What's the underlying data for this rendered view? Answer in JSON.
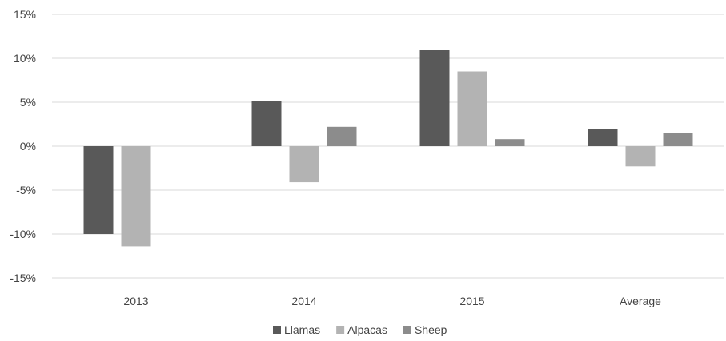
{
  "chart_data": {
    "type": "bar",
    "title": "",
    "xlabel": "",
    "ylabel": "",
    "categories": [
      "2013",
      "2014",
      "2015",
      "Average"
    ],
    "series": [
      {
        "name": "Llamas",
        "color": "#595959",
        "values": [
          -10.0,
          5.1,
          11.0,
          2.0
        ]
      },
      {
        "name": "Alpacas",
        "color": "#b3b3b3",
        "values": [
          -11.4,
          -4.1,
          8.5,
          -2.3
        ]
      },
      {
        "name": "Sheep",
        "color": "#8c8c8c",
        "values": [
          null,
          2.2,
          0.8,
          1.5
        ]
      }
    ],
    "ylim": [
      -15,
      15
    ],
    "yticks": [
      15,
      10,
      5,
      0,
      -5,
      -10,
      -15
    ],
    "ytick_labels": [
      "15%",
      "10%",
      "5%",
      "0%",
      "-5%",
      "-10%",
      "-15%"
    ],
    "grid": true,
    "legend_position": "bottom"
  }
}
